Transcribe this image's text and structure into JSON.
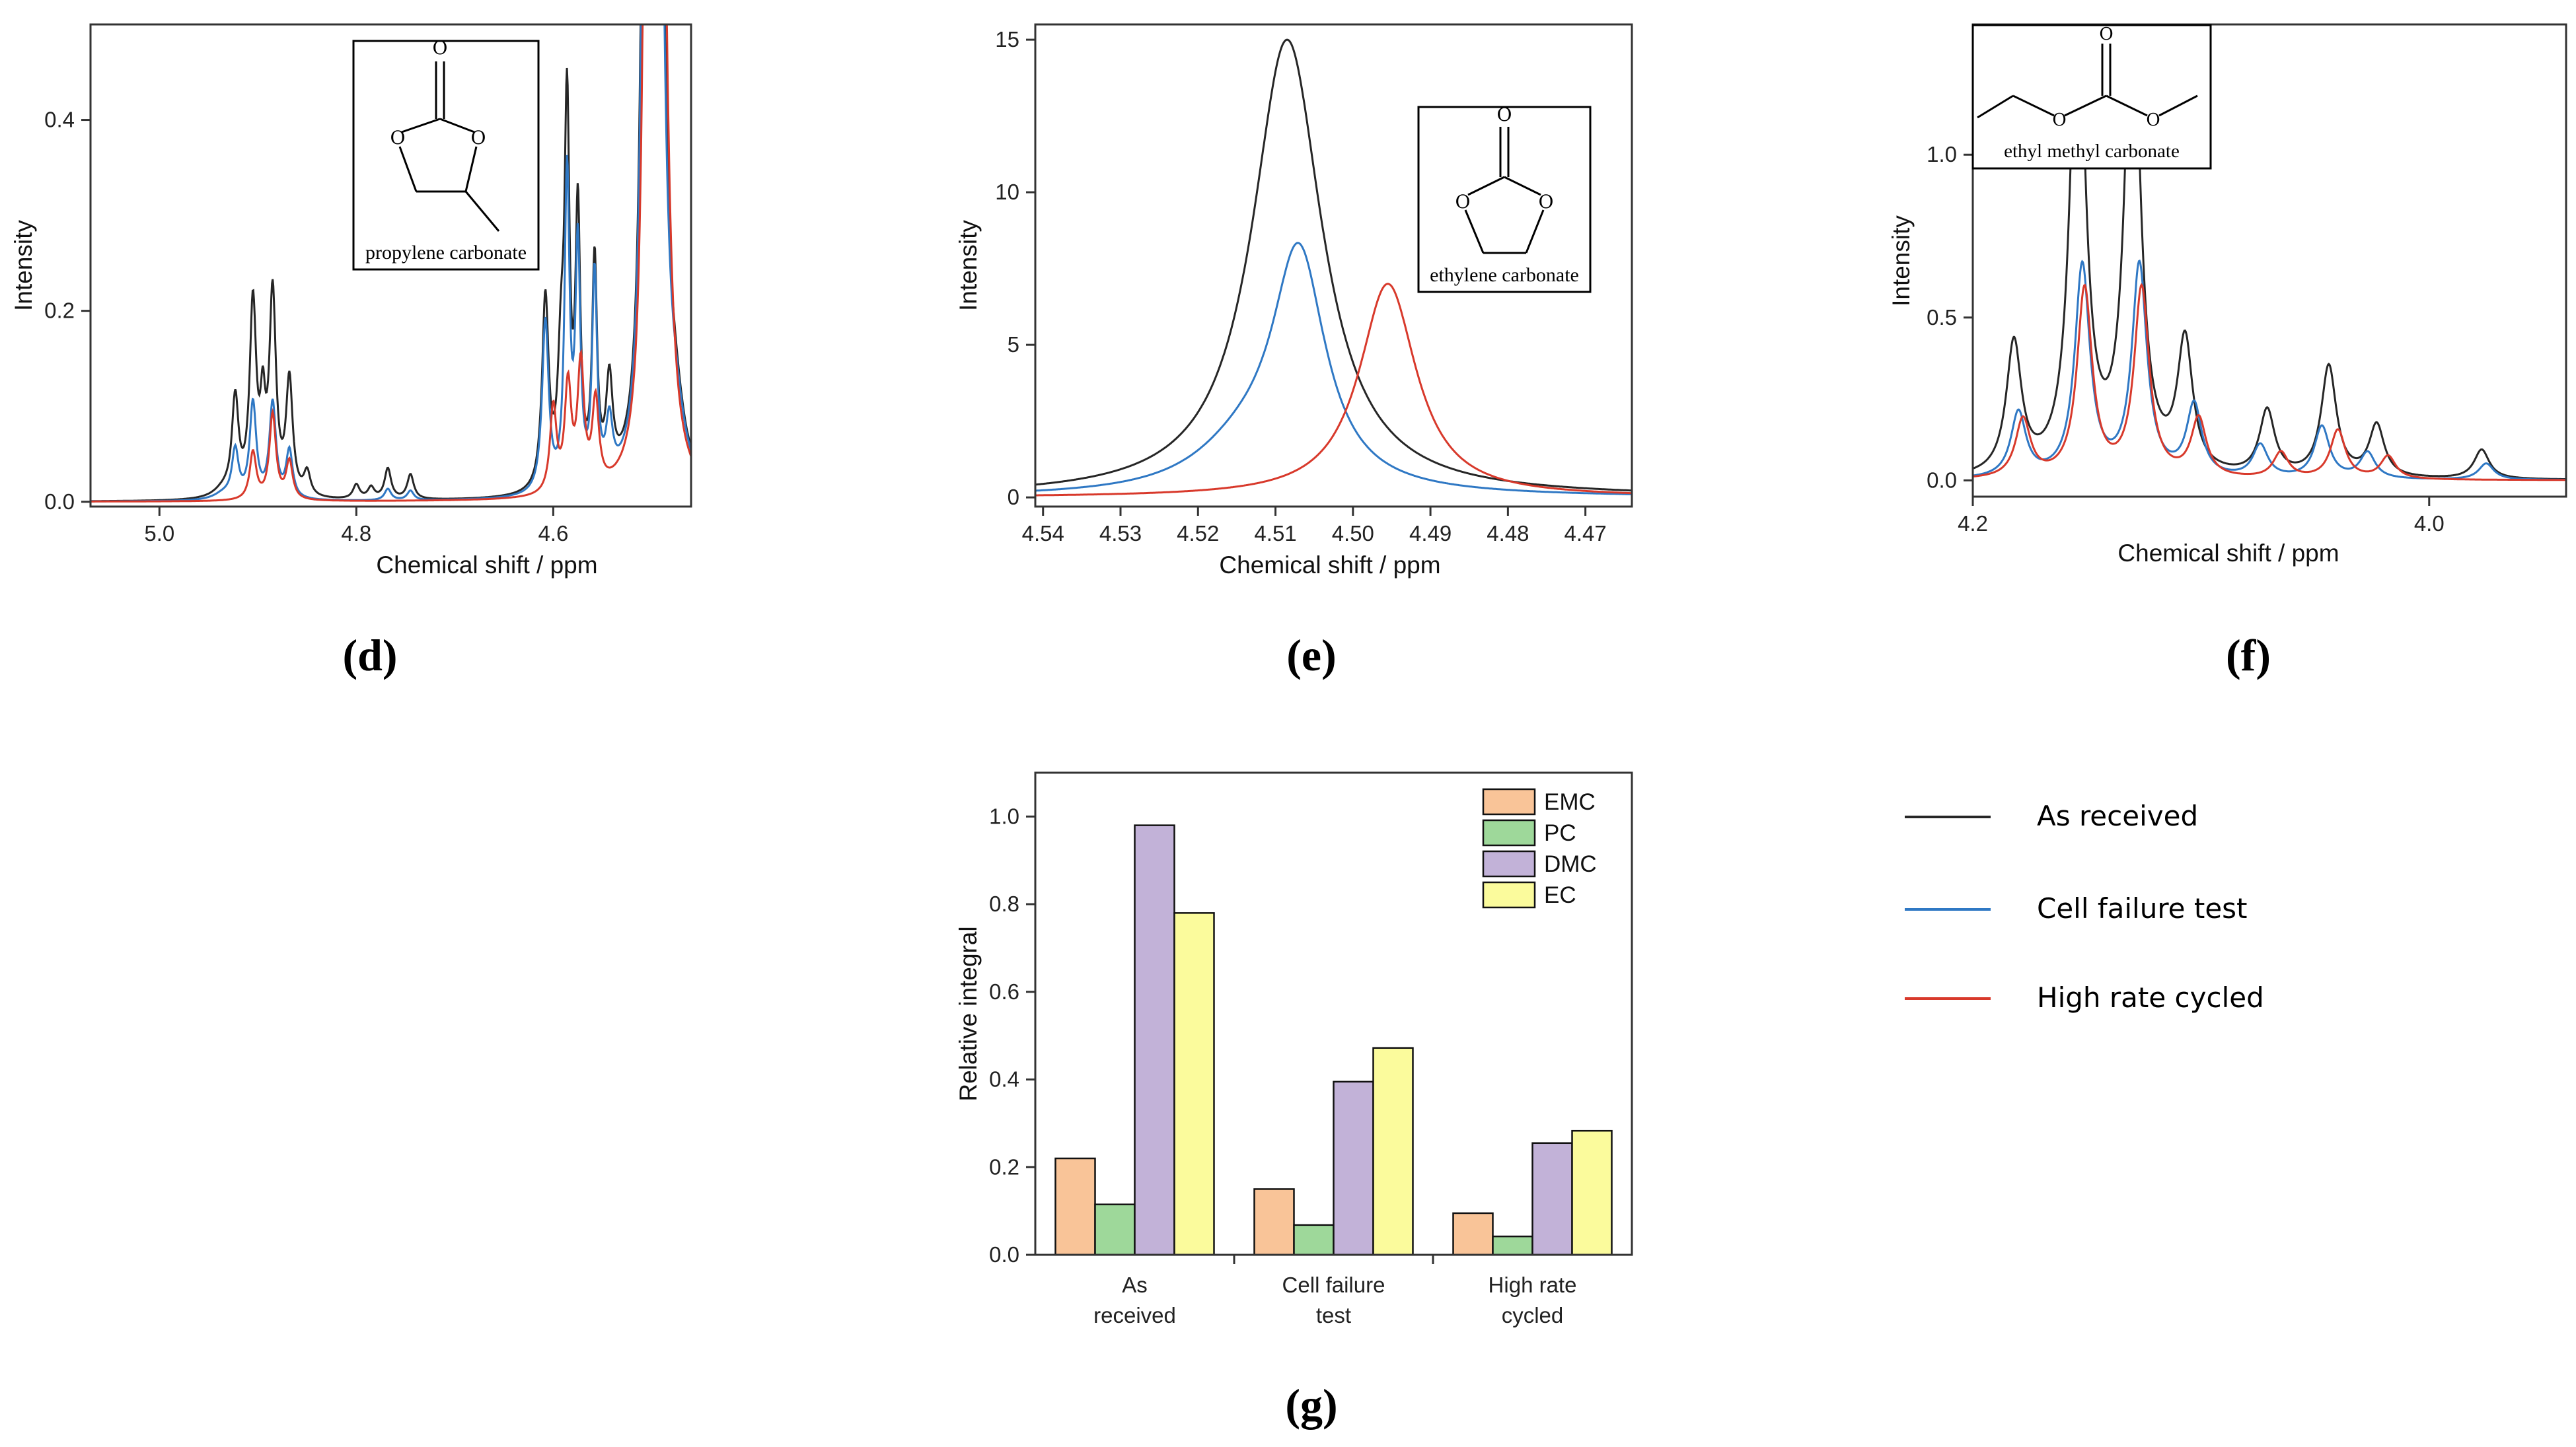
{
  "colors": {
    "as_received": "#262626",
    "cell_failure": "#2f78c4",
    "high_rate": "#d8392b",
    "EMC": "#f9c498",
    "PC": "#9ed89a",
    "DMC": "#c2b2d8",
    "EC": "#fbfb9c"
  },
  "panel_labels": {
    "d": "(d)",
    "e": "(e)",
    "f": "(f)",
    "g": "(g)"
  },
  "legend": {
    "items": [
      {
        "key": "as_received",
        "label": "As received"
      },
      {
        "key": "cell_failure",
        "label": "Cell failure test"
      },
      {
        "key": "high_rate",
        "label": "High rate cycled"
      }
    ]
  },
  "chart_data": [
    {
      "id": "d",
      "type": "line",
      "xlabel": "Chemical shift / ppm",
      "ylabel": "Intensity",
      "xlim": [
        5.07,
        4.46
      ],
      "ylim": [
        -0.005,
        0.5
      ],
      "xticks": [
        5.0,
        4.8,
        4.6
      ],
      "xtick_labels": [
        "5.0",
        "4.8",
        "4.6"
      ],
      "yticks": [
        0.0,
        0.2,
        0.4
      ],
      "ytick_labels": [
        "0.0",
        "0.2",
        "0.4"
      ],
      "inset_label": "propylene carbonate",
      "series": [
        {
          "name": "As received",
          "key": "as_received",
          "peaks": [
            [
              4.935,
              0.008,
              0.012
            ],
            [
              4.923,
              0.1,
              0.004
            ],
            [
              4.905,
              0.2,
              0.004
            ],
            [
              4.895,
              0.08,
              0.003
            ],
            [
              4.885,
              0.21,
              0.004
            ],
            [
              4.868,
              0.12,
              0.004
            ],
            [
              4.85,
              0.025,
              0.004
            ],
            [
              4.8,
              0.015,
              0.004
            ],
            [
              4.785,
              0.012,
              0.004
            ],
            [
              4.768,
              0.032,
              0.004
            ],
            [
              4.745,
              0.026,
              0.004
            ],
            [
              4.608,
              0.2,
              0.004
            ],
            [
              4.592,
              0.12,
              0.004
            ],
            [
              4.586,
              0.38,
              0.003
            ],
            [
              4.575,
              0.28,
              0.003
            ],
            [
              4.558,
              0.23,
              0.003
            ],
            [
              4.543,
              0.1,
              0.004
            ],
            [
              4.508,
              0.55,
              0.004
            ],
            [
              4.495,
              1.4,
              0.006
            ],
            [
              4.475,
              0.04,
              0.01
            ]
          ]
        },
        {
          "name": "Cell failure test",
          "key": "cell_failure",
          "peaks": [
            [
              4.935,
              0.006,
              0.012
            ],
            [
              4.923,
              0.05,
              0.004
            ],
            [
              4.905,
              0.1,
              0.004
            ],
            [
              4.885,
              0.1,
              0.004
            ],
            [
              4.868,
              0.05,
              0.004
            ],
            [
              4.768,
              0.012,
              0.004
            ],
            [
              4.745,
              0.01,
              0.004
            ],
            [
              4.608,
              0.18,
              0.004
            ],
            [
              4.586,
              0.33,
              0.003
            ],
            [
              4.575,
              0.25,
              0.003
            ],
            [
              4.558,
              0.22,
              0.003
            ],
            [
              4.543,
              0.06,
              0.004
            ],
            [
              4.508,
              0.5,
              0.004
            ],
            [
              4.495,
              1.3,
              0.006
            ],
            [
              4.475,
              0.04,
              0.01
            ]
          ]
        },
        {
          "name": "High rate cycled",
          "key": "high_rate",
          "peaks": [
            [
              4.905,
              0.05,
              0.004
            ],
            [
              4.885,
              0.09,
              0.004
            ],
            [
              4.868,
              0.04,
              0.004
            ],
            [
              4.6,
              0.09,
              0.004
            ],
            [
              4.585,
              0.11,
              0.004
            ],
            [
              4.572,
              0.13,
              0.004
            ],
            [
              4.557,
              0.09,
              0.004
            ],
            [
              4.505,
              0.8,
              0.004
            ],
            [
              4.492,
              1.2,
              0.006
            ]
          ]
        }
      ]
    },
    {
      "id": "e",
      "type": "line",
      "xlabel": "Chemical shift / ppm",
      "ylabel": "Intensity",
      "xlim": [
        4.541,
        4.464
      ],
      "ylim": [
        -0.3,
        15.5
      ],
      "xticks": [
        4.54,
        4.53,
        4.52,
        4.51,
        4.5,
        4.49,
        4.48,
        4.47
      ],
      "xtick_labels": [
        "4.54",
        "4.53",
        "4.52",
        "4.51",
        "4.50",
        "4.49",
        "4.48",
        "4.47"
      ],
      "yticks": [
        0,
        5,
        10,
        15
      ],
      "ytick_labels": [
        "0",
        "5",
        "10",
        "15"
      ],
      "inset_label": "ethylene carbonate",
      "series": [
        {
          "name": "As received",
          "key": "as_received",
          "peaks": [
            [
              4.5085,
              15.0,
              0.0055
            ]
          ]
        },
        {
          "name": "Cell failure test",
          "key": "cell_failure",
          "peaks": [
            [
              4.507,
              7.6,
              0.0042
            ],
            [
              4.514,
              1.3,
              0.008
            ]
          ]
        },
        {
          "name": "High rate cycled",
          "key": "high_rate",
          "peaks": [
            [
              4.4955,
              7.0,
              0.0045
            ]
          ]
        }
      ]
    },
    {
      "id": "f",
      "type": "line",
      "xlabel": "Chemical shift / ppm",
      "ylabel": "Intensity",
      "xlim": [
        4.2,
        3.94
      ],
      "ylim": [
        -0.05,
        1.4
      ],
      "xticks": [
        4.2,
        4.0
      ],
      "xtick_labels": [
        "4.2",
        "4.0"
      ],
      "yticks": [
        0.0,
        0.5,
        1.0
      ],
      "ytick_labels": [
        "0.0",
        "0.5",
        "1.0"
      ],
      "inset_label": "ethyl methyl carbonate",
      "series": [
        {
          "name": "As received",
          "key": "as_received",
          "peaks": [
            [
              4.182,
              0.4,
              0.004
            ],
            [
              4.154,
              1.5,
              0.004
            ],
            [
              4.13,
              1.5,
              0.004
            ],
            [
              4.107,
              0.4,
              0.004
            ],
            [
              4.071,
              0.2,
              0.004
            ],
            [
              4.044,
              0.34,
              0.004
            ],
            [
              4.023,
              0.16,
              0.004
            ],
            [
              3.977,
              0.09,
              0.004
            ]
          ]
        },
        {
          "name": "Cell failure test",
          "key": "cell_failure",
          "peaks": [
            [
              4.18,
              0.2,
              0.004
            ],
            [
              4.152,
              0.65,
              0.004
            ],
            [
              4.127,
              0.65,
              0.004
            ],
            [
              4.103,
              0.22,
              0.004
            ],
            [
              4.074,
              0.1,
              0.004
            ],
            [
              4.047,
              0.16,
              0.004
            ],
            [
              4.027,
              0.08,
              0.004
            ],
            [
              3.975,
              0.05,
              0.004
            ]
          ]
        },
        {
          "name": "High rate cycled",
          "key": "high_rate",
          "peaks": [
            [
              4.178,
              0.18,
              0.004
            ],
            [
              4.151,
              0.58,
              0.004
            ],
            [
              4.126,
              0.58,
              0.004
            ],
            [
              4.101,
              0.18,
              0.004
            ],
            [
              4.065,
              0.08,
              0.004
            ],
            [
              4.04,
              0.15,
              0.004
            ],
            [
              4.018,
              0.07,
              0.004
            ]
          ]
        }
      ]
    },
    {
      "id": "g",
      "type": "bar",
      "ylabel": "Relative integral",
      "ylim": [
        0,
        1.1
      ],
      "yticks": [
        0.0,
        0.2,
        0.4,
        0.6,
        0.8,
        1.0
      ],
      "ytick_labels": [
        "0.0",
        "0.2",
        "0.4",
        "0.6",
        "0.8",
        "1.0"
      ],
      "categories": [
        [
          "As",
          "received"
        ],
        [
          "Cell failure",
          "test"
        ],
        [
          "High rate",
          "cycled"
        ]
      ],
      "series": [
        {
          "name": "EMC",
          "values": [
            0.22,
            0.15,
            0.095
          ]
        },
        {
          "name": "PC",
          "values": [
            0.115,
            0.068,
            0.042
          ]
        },
        {
          "name": "DMC",
          "values": [
            0.98,
            0.395,
            0.255
          ]
        },
        {
          "name": "EC",
          "values": [
            0.78,
            0.472,
            0.283
          ]
        }
      ]
    }
  ]
}
